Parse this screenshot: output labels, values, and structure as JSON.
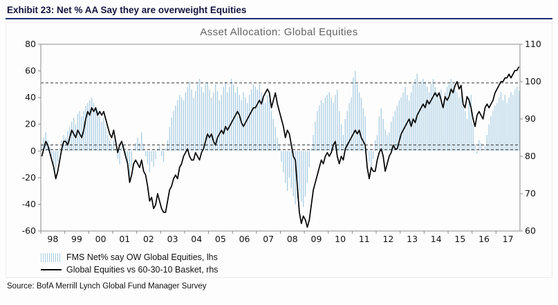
{
  "header": {
    "exhibit_label": "Exhibit 23: Net % AA Say they are overweight Equities"
  },
  "source": "Source: BofA Merrill Lynch Global Fund Manager Survey",
  "chart_data": {
    "type": "combo-bar-line",
    "title": "Asset Allocation: Global Equities",
    "x_start_year": 1998,
    "years": [
      "98",
      "99",
      "00",
      "01",
      "02",
      "03",
      "04",
      "05",
      "06",
      "07",
      "08",
      "09",
      "10",
      "11",
      "12",
      "13",
      "14",
      "15",
      "16",
      "17"
    ],
    "left_axis": {
      "min": -60,
      "max": 80,
      "ticks": [
        80,
        60,
        40,
        20,
        0,
        -20,
        -40,
        -60
      ]
    },
    "right_axis": {
      "min": 60,
      "max": 110,
      "ticks": [
        110,
        100,
        90,
        80,
        70,
        60
      ]
    },
    "reference_lines_lhs": [
      51,
      4.5,
      1
    ],
    "grid": false,
    "legend_position": "bottom-left",
    "series": [
      {
        "name": "FMS Net% say OW Global Equities, lhs",
        "type": "bar",
        "axis": "left",
        "color": "#a9cde2",
        "values": [
          5,
          10,
          14,
          8,
          3,
          -4,
          -10,
          -14,
          -8,
          2,
          8,
          12,
          10,
          15,
          18,
          22,
          25,
          20,
          28,
          30,
          26,
          30,
          34,
          36,
          38,
          40,
          36,
          32,
          30,
          26,
          22,
          25,
          18,
          12,
          8,
          5,
          8,
          2,
          -6,
          -10,
          3,
          5,
          -4,
          -8,
          -20,
          -12,
          0,
          6,
          10,
          6,
          14,
          4,
          -4,
          -10,
          -16,
          -8,
          -12,
          -6,
          2,
          4,
          -4,
          -8,
          2,
          8,
          18,
          25,
          30,
          34,
          38,
          42,
          40,
          38,
          44,
          48,
          52,
          46,
          40,
          45,
          50,
          54,
          48,
          44,
          50,
          52,
          46,
          40,
          44,
          50,
          45,
          38,
          42,
          48,
          52,
          44,
          48,
          54,
          50,
          44,
          48,
          42,
          38,
          44,
          40,
          36,
          42,
          46,
          50,
          48,
          46,
          50,
          44,
          40,
          36,
          42,
          38,
          30,
          24,
          18,
          10,
          4,
          -8,
          -16,
          -24,
          -30,
          -20,
          -28,
          -34,
          -40,
          -36,
          -30,
          -38,
          -42,
          -34,
          -24,
          -12,
          2,
          12,
          22,
          30,
          34,
          38,
          36,
          40,
          42,
          44,
          40,
          36,
          42,
          46,
          30,
          20,
          12,
          24,
          30,
          36,
          40,
          55,
          60,
          50,
          44,
          40,
          32,
          26,
          2,
          -8,
          -14,
          -6,
          8,
          12,
          26,
          32,
          24,
          16,
          12,
          14,
          22,
          26,
          30,
          34,
          38,
          40,
          44,
          48,
          42,
          38,
          44,
          50,
          54,
          58,
          50,
          52,
          54,
          52,
          48,
          44,
          50,
          54,
          48,
          44,
          40,
          46,
          34,
          44,
          48,
          50,
          54,
          50,
          46,
          44,
          40,
          42,
          38,
          30,
          24,
          40,
          42,
          20,
          5,
          -2,
          8,
          6,
          0,
          4,
          12,
          20,
          26,
          30,
          34,
          36,
          40,
          44,
          38,
          42,
          36,
          40,
          44,
          42,
          46,
          48,
          45
        ]
      },
      {
        "name": "Global Equities vs 60-30-10 Basket, rhs",
        "type": "line",
        "axis": "right",
        "color": "#000000",
        "values": [
          80,
          82,
          84,
          83,
          81,
          79,
          77,
          74,
          76,
          79,
          82,
          84,
          84,
          83,
          85,
          87,
          86,
          85,
          87,
          86,
          85,
          87,
          90,
          92,
          91,
          93,
          92,
          93,
          91,
          92,
          91,
          92,
          90,
          88,
          86,
          85,
          87,
          84,
          81,
          83,
          84,
          82,
          80,
          78,
          73,
          75,
          78,
          79,
          78,
          77,
          79,
          76,
          75,
          72,
          68,
          69,
          66,
          67,
          70,
          68,
          66,
          65,
          65,
          68,
          71,
          72,
          74,
          75,
          74,
          77,
          78,
          80,
          81,
          82,
          80,
          79,
          79,
          81,
          80,
          79,
          81,
          82,
          84,
          86,
          85,
          86,
          84,
          83,
          85,
          86,
          87,
          86,
          88,
          87,
          88,
          89,
          90,
          91,
          92,
          91,
          89,
          88,
          89,
          90,
          91,
          92,
          93,
          93,
          94,
          95,
          94,
          96,
          97,
          98,
          97,
          93,
          95,
          97,
          94,
          92,
          90,
          88,
          85,
          87,
          86,
          83,
          80,
          79,
          72,
          65,
          62,
          64,
          63,
          61,
          63,
          67,
          71,
          73,
          75,
          77,
          79,
          78,
          80,
          81,
          80,
          81,
          83,
          84,
          80,
          78,
          80,
          79,
          82,
          83,
          84,
          85,
          86,
          87,
          86,
          87,
          85,
          84,
          83,
          77,
          74,
          77,
          76,
          76,
          79,
          81,
          82,
          80,
          76,
          78,
          80,
          81,
          83,
          82,
          82,
          84,
          86,
          87,
          88,
          89,
          90,
          88,
          90,
          89,
          91,
          92,
          93,
          94,
          93,
          95,
          94,
          95,
          96,
          97,
          96,
          97,
          95,
          93,
          96,
          95,
          96,
          98,
          97,
          99,
          100,
          98,
          99,
          94,
          93,
          96,
          95,
          93,
          90,
          88,
          91,
          92,
          91,
          90,
          93,
          94,
          93,
          94,
          95,
          97,
          98,
          99,
          100,
          100,
          101,
          101,
          102,
          101,
          102,
          103,
          103,
          104
        ]
      }
    ]
  }
}
